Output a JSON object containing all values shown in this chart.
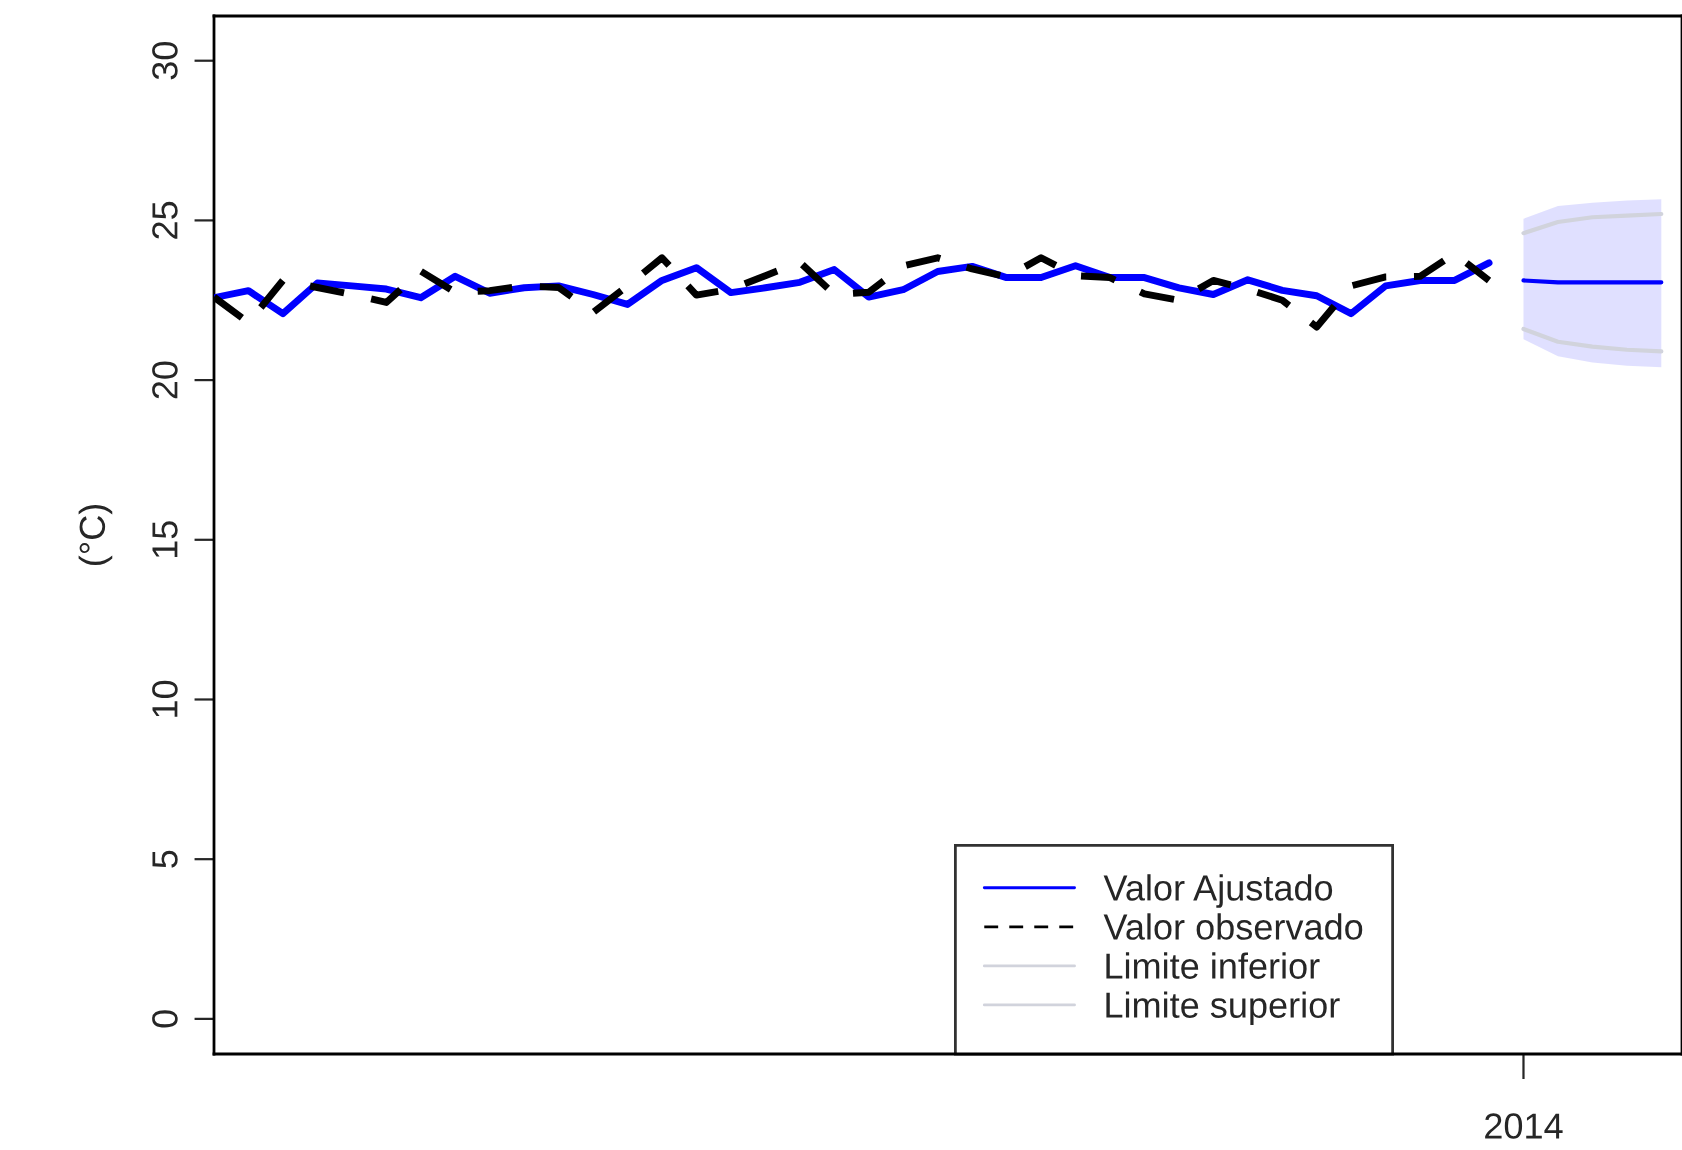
{
  "chart_data": {
    "type": "line",
    "ylabel": "(°C)",
    "categories": [
      null,
      null,
      null,
      null,
      null,
      null,
      null,
      null,
      null,
      null,
      null,
      null,
      null,
      null,
      null,
      null,
      null,
      null,
      null,
      null,
      null,
      null,
      null,
      null,
      null,
      null,
      null,
      null,
      null,
      null,
      null,
      null,
      null,
      null,
      null,
      null,
      null,
      null,
      "2014",
      null,
      null,
      null,
      null
    ],
    "series": [
      {
        "name": "Valor Ajustado",
        "color": "#0000ff",
        "values": [
          22.58,
          22.8,
          22.08,
          23.04,
          22.95,
          22.85,
          22.58,
          23.25,
          22.72,
          22.89,
          22.95,
          22.68,
          22.37,
          23.12,
          23.52,
          22.74,
          22.89,
          23.06,
          23.46,
          22.6,
          22.83,
          23.4,
          23.56,
          23.21,
          23.21,
          23.58,
          23.21,
          23.21,
          22.89,
          22.68,
          23.14,
          22.81,
          22.64,
          22.08,
          22.95,
          23.12,
          23.12,
          23.67,
          null,
          null,
          null,
          null,
          null
        ]
      },
      {
        "name": "Valor observado",
        "color": "#000000",
        "line_style": "dashed",
        "values": [
          22.6,
          21.8,
          23.12,
          22.9,
          22.68,
          22.43,
          23.41,
          22.75,
          22.8,
          22.95,
          22.9,
          22.12,
          22.95,
          23.83,
          22.66,
          22.85,
          23.27,
          23.69,
          22.68,
          22.75,
          23.58,
          23.83,
          23.48,
          23.23,
          23.83,
          23.27,
          23.21,
          22.7,
          22.5,
          23.12,
          22.85,
          22.5,
          21.66,
          22.95,
          23.23,
          23.25,
          23.96,
          23.12,
          null,
          null,
          null,
          null,
          null
        ]
      },
      {
        "color": "#0000ff",
        "values": [
          null,
          null,
          null,
          null,
          null,
          null,
          null,
          null,
          null,
          null,
          null,
          null,
          null,
          null,
          null,
          null,
          null,
          null,
          null,
          null,
          null,
          null,
          null,
          null,
          null,
          null,
          null,
          null,
          null,
          null,
          null,
          null,
          null,
          null,
          null,
          null,
          null,
          null,
          23.12,
          23.06,
          23.06,
          23.06,
          23.06
        ],
        "lower": [
          null,
          null,
          null,
          null,
          null,
          null,
          null,
          null,
          null,
          null,
          null,
          null,
          null,
          null,
          null,
          null,
          null,
          null,
          null,
          null,
          null,
          null,
          null,
          null,
          null,
          null,
          null,
          null,
          null,
          null,
          null,
          null,
          null,
          null,
          null,
          null,
          null,
          null,
          21.28,
          20.75,
          20.55,
          20.45,
          20.4
        ],
        "upper": [
          null,
          null,
          null,
          null,
          null,
          null,
          null,
          null,
          null,
          null,
          null,
          null,
          null,
          null,
          null,
          null,
          null,
          null,
          null,
          null,
          null,
          null,
          null,
          null,
          null,
          null,
          null,
          null,
          null,
          null,
          null,
          null,
          null,
          null,
          null,
          null,
          null,
          null,
          25.05,
          25.45,
          25.55,
          25.62,
          25.66
        ]
      },
      {
        "name": "Limite inferior",
        "color": "#d1d3dc",
        "values": [
          null,
          null,
          null,
          null,
          null,
          null,
          null,
          null,
          null,
          null,
          null,
          null,
          null,
          null,
          null,
          null,
          null,
          null,
          null,
          null,
          null,
          null,
          null,
          null,
          null,
          null,
          null,
          null,
          null,
          null,
          null,
          null,
          null,
          null,
          null,
          null,
          null,
          null,
          21.6,
          21.2,
          21.05,
          20.95,
          20.9
        ]
      },
      {
        "name": "Limite superior",
        "color": "#d1d3dc",
        "values": [
          null,
          null,
          null,
          null,
          null,
          null,
          null,
          null,
          null,
          null,
          null,
          null,
          null,
          null,
          null,
          null,
          null,
          null,
          null,
          null,
          null,
          null,
          null,
          null,
          null,
          null,
          null,
          null,
          null,
          null,
          null,
          null,
          null,
          null,
          null,
          null,
          null,
          null,
          24.6,
          24.95,
          25.1,
          25.15,
          25.2
        ]
      }
    ],
    "ylim": [
      -1.1,
      31.4
    ],
    "yticks": [
      0,
      5,
      10,
      15,
      20,
      25,
      30
    ],
    "legend": "bottom",
    "grid": false
  }
}
